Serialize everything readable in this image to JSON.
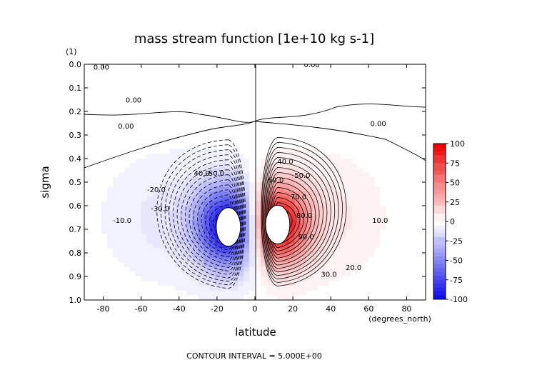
{
  "chart_data": {
    "type": "heatmap",
    "title": "mass stream function [1e+10 kg s-1]",
    "xlabel": "latitude",
    "ylabel": "sigma",
    "x_units": "(degrees_north)",
    "y_scale_note": "(1)",
    "footer": "CONTOUR INTERVAL = 5.000E+00",
    "xlim": [
      -90,
      90
    ],
    "ylim": [
      1.0,
      0.0
    ],
    "x_ticks": [
      -80,
      -60,
      -40,
      -20,
      0,
      20,
      40,
      60,
      80
    ],
    "y_ticks": [
      "0.0",
      "0.1",
      "0.2",
      "0.3",
      "0.4",
      "0.5",
      "0.6",
      "0.7",
      "0.8",
      "0.9",
      "1.0"
    ],
    "colorbar": {
      "range": [
        -100,
        100
      ],
      "ticks": [
        "100",
        "75",
        "50",
        "25",
        "0",
        "-25",
        "-50",
        "-75",
        "-100"
      ],
      "colors": {
        "negative": "#0000ee",
        "zero": "#ffffff",
        "positive": "#ee0000"
      }
    },
    "contour_interval": 5.0,
    "cells": [
      {
        "name": "southern cell",
        "sign": "negative",
        "center_lat": -14,
        "center_sigma": 0.69,
        "peak": -100
      },
      {
        "name": "northern cell",
        "sign": "positive",
        "center_lat": 12,
        "center_sigma": 0.68,
        "peak": 100
      }
    ],
    "contour_labels": [
      {
        "text": "0.00",
        "lat": -81,
        "sigma": 0.01
      },
      {
        "text": "0.00",
        "lat": 30,
        "sigma": 0.0
      },
      {
        "text": "0.00",
        "lat": -64,
        "sigma": 0.15
      },
      {
        "text": "0.00",
        "lat": -68,
        "sigma": 0.26
      },
      {
        "text": "0.00",
        "lat": 65,
        "sigma": 0.25
      },
      {
        "text": "-10.0",
        "lat": -70,
        "sigma": 0.66
      },
      {
        "text": "-20.0",
        "lat": -52,
        "sigma": 0.53
      },
      {
        "text": "-30.0",
        "lat": -50,
        "sigma": 0.61
      },
      {
        "text": "40.0",
        "lat": -28,
        "sigma": 0.46
      },
      {
        "text": "-50.0",
        "lat": -21,
        "sigma": 0.46
      },
      {
        "text": "40.0",
        "lat": 16,
        "sigma": 0.41
      },
      {
        "text": "50.0",
        "lat": 25,
        "sigma": 0.47
      },
      {
        "text": "60.0",
        "lat": 11,
        "sigma": 0.49
      },
      {
        "text": "70.0",
        "lat": 23,
        "sigma": 0.56
      },
      {
        "text": "80.0",
        "lat": 26,
        "sigma": 0.64
      },
      {
        "text": "90.0",
        "lat": 27,
        "sigma": 0.73
      },
      {
        "text": "10.0",
        "lat": 66,
        "sigma": 0.66
      },
      {
        "text": "20.0",
        "lat": 52,
        "sigma": 0.86
      },
      {
        "text": "30.0",
        "lat": 39,
        "sigma": 0.89
      }
    ]
  }
}
